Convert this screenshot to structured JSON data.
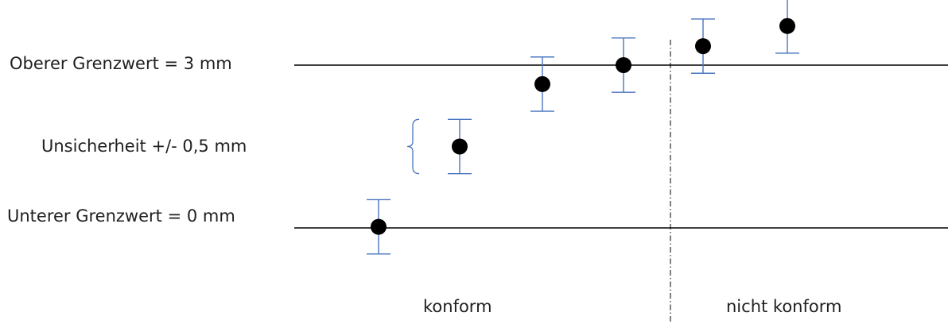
{
  "labels": {
    "upper_limit": "Oberer Grenzwert = 3 mm",
    "uncertainty": "Unsicherheit +/- 0,5 mm",
    "lower_limit": "Unterer Grenzwert = 0 mm",
    "conform": "konform",
    "non_conform": "nicht konform"
  },
  "colors": {
    "error_bar": "#4a76c0",
    "point": "#000000",
    "line": "#000000"
  },
  "chart_data": {
    "type": "scatter",
    "ylim": [
      -2,
      4
    ],
    "limits": {
      "lower": 0,
      "upper": 3
    },
    "uncertainty": 0.5,
    "points": [
      {
        "zone": "konform",
        "value": 0.02
      },
      {
        "zone": "konform",
        "value": 1.5
      },
      {
        "zone": "konform",
        "value": 2.65
      },
      {
        "zone": "konform",
        "value": 3.0
      },
      {
        "zone": "nicht konform",
        "value": 3.35
      },
      {
        "zone": "nicht konform",
        "value": 3.72
      }
    ]
  }
}
